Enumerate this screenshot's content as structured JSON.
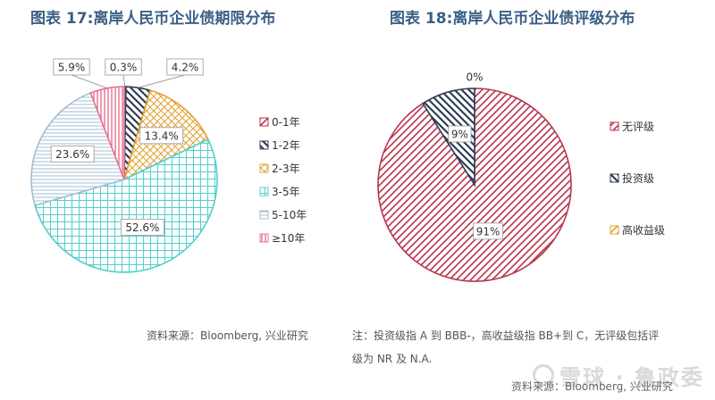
{
  "colors": {
    "title": "#3b5f86",
    "red": "#b8354b",
    "navy": "#2f3e56",
    "orange": "#e3a12f",
    "teal": "#53cfc9",
    "lightblue": "#a3bcd2",
    "pink": "#e86f8f"
  },
  "chart_data": [
    {
      "type": "pie",
      "title": "图表 17:离岸人民币企业债期限分布",
      "legend_position": "right",
      "slices": [
        {
          "label": "0-1年",
          "value": 0.3,
          "data_label": "0.3%",
          "color": "#b8354b",
          "pattern": "diag-right"
        },
        {
          "label": "1-2年",
          "value": 4.2,
          "data_label": "4.2%",
          "color": "#2f3e56",
          "pattern": "diag-left"
        },
        {
          "label": "2-3年",
          "value": 13.4,
          "data_label": "13.4%",
          "color": "#e3a12f",
          "pattern": "lattice"
        },
        {
          "label": "3-5年",
          "value": 52.6,
          "data_label": "52.6%",
          "color": "#53cfc9",
          "pattern": "grid"
        },
        {
          "label": "5-10年",
          "value": 23.6,
          "data_label": "23.6%",
          "color": "#a3bcd2",
          "pattern": "horizontal"
        },
        {
          "label": "≥10年",
          "value": 5.9,
          "data_label": "5.9%",
          "color": "#e86f8f",
          "pattern": "vertical"
        }
      ]
    },
    {
      "type": "pie",
      "title": "图表 18:离岸人民币企业债评级分布",
      "legend_position": "right",
      "slices": [
        {
          "label": "高收益级",
          "value": 0,
          "data_label": "0%",
          "color": "#e3a12f",
          "pattern": "diag-right"
        },
        {
          "label": "无评级",
          "value": 91,
          "data_label": "91%",
          "color": "#b8354b",
          "pattern": "diag-right"
        },
        {
          "label": "投资级",
          "value": 9,
          "data_label": "9%",
          "color": "#2f3e56",
          "pattern": "diag-left"
        }
      ],
      "legend_order": [
        "无评级",
        "投资级",
        "高收益级"
      ]
    }
  ],
  "sources": {
    "left": "资料来源：Bloomberg, 兴业研究",
    "note_line1": "注：投资级指 A 到 BBB-，高收益级指 BB+到 C，无评级包括评",
    "note_line2": "级为 NR 及 N.A.",
    "dup": "资料来源：Bloomberg, 兴业研究"
  },
  "watermark": "雪球 · 鲁政委"
}
